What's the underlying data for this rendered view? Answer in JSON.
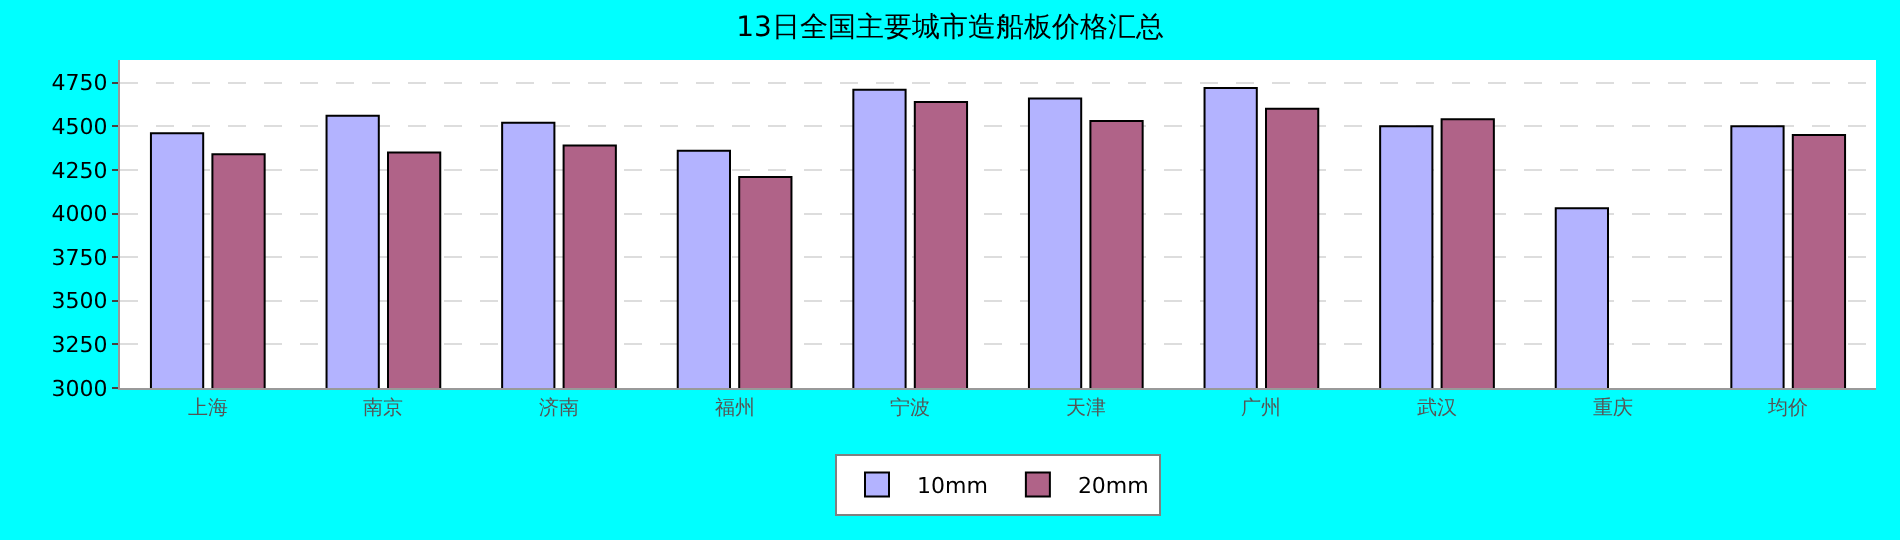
{
  "chart_data": {
    "type": "bar",
    "title": "13日全国主要城市造船板价格汇总",
    "categories": [
      "上海",
      "南京",
      "济南",
      "福州",
      "宁波",
      "天津",
      "广州",
      "武汉",
      "重庆",
      "均价"
    ],
    "series": [
      {
        "name": "10mm",
        "color": "#b3b3ff",
        "values": [
          4460,
          4560,
          4520,
          4360,
          4710,
          4660,
          4720,
          4500,
          4030,
          4500
        ]
      },
      {
        "name": "20mm",
        "color": "#b06388",
        "values": [
          4340,
          4350,
          4390,
          4210,
          4640,
          4530,
          4600,
          4540,
          null,
          4450
        ]
      }
    ],
    "ylim": [
      3000,
      4880
    ],
    "yticks": [
      3000,
      3250,
      3500,
      3750,
      4000,
      4250,
      4500,
      4750
    ],
    "grid": "y",
    "legend": "bottom"
  }
}
